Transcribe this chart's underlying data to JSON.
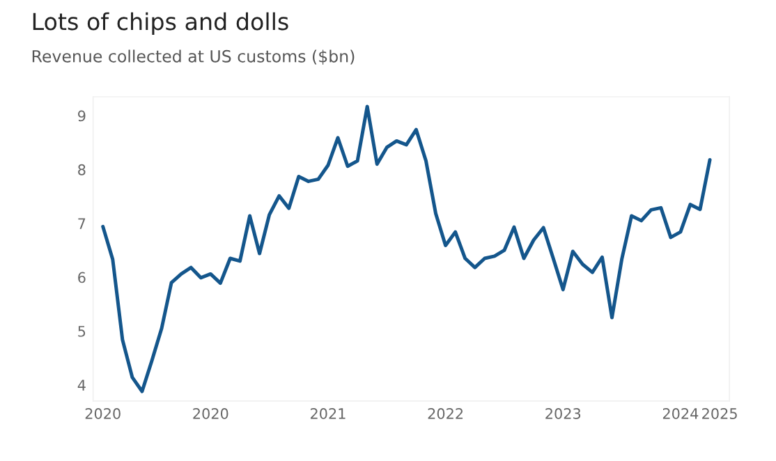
{
  "chart_data": {
    "type": "line",
    "title": "Lots of chips and dolls",
    "subtitle": "Revenue collected at US customs ($bn)",
    "categories": [
      "2020",
      null,
      null,
      null,
      null,
      null,
      null,
      null,
      null,
      null,
      null,
      "2020",
      null,
      null,
      null,
      null,
      null,
      null,
      null,
      null,
      null,
      null,
      null,
      "2021",
      null,
      null,
      null,
      null,
      null,
      null,
      null,
      null,
      null,
      null,
      null,
      "2022",
      null,
      null,
      null,
      null,
      null,
      null,
      null,
      null,
      null,
      null,
      null,
      "2023",
      null,
      null,
      null,
      null,
      null,
      null,
      null,
      null,
      null,
      null,
      null,
      "2024",
      null,
      null,
      null,
      "2025"
    ],
    "series": [
      {
        "color": "#14568c",
        "values": [
          6.94,
          6.33,
          4.84,
          4.14,
          3.88,
          4.45,
          5.05,
          5.9,
          6.06,
          6.18,
          5.99,
          6.06,
          5.89,
          6.35,
          6.3,
          7.14,
          6.44,
          7.16,
          7.51,
          7.28,
          7.87,
          7.78,
          7.82,
          8.08,
          8.59,
          8.06,
          8.16,
          9.17,
          8.1,
          8.41,
          8.53,
          8.46,
          8.74,
          8.16,
          7.18,
          6.59,
          6.84,
          6.35,
          6.18,
          6.35,
          6.39,
          6.5,
          6.93,
          6.35,
          6.69,
          6.92,
          6.35,
          5.77,
          6.48,
          6.24,
          6.09,
          6.37,
          5.25,
          6.33,
          7.14,
          7.05,
          7.25,
          7.29,
          6.74,
          6.84,
          7.35,
          7.26,
          8.18,
          null
        ]
      }
    ],
    "ylim": [
      3.7,
      9.35
    ],
    "yticks": [
      4,
      5,
      6,
      7,
      8,
      9
    ],
    "marker": "none",
    "line_style": "solid"
  }
}
